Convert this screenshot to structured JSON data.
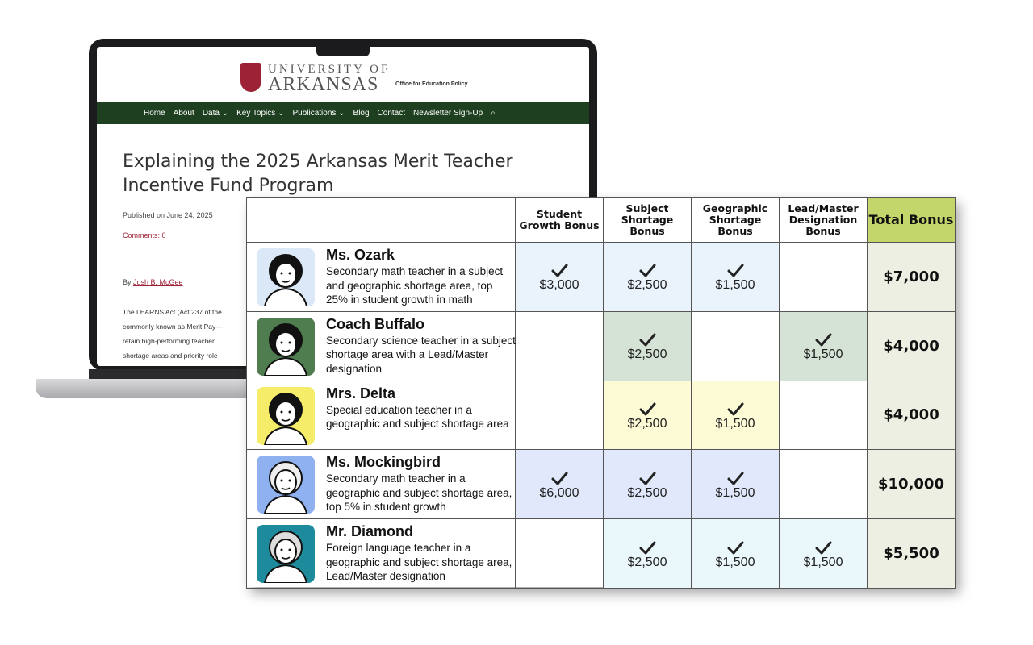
{
  "site": {
    "logo_top": "UNIVERSITY OF",
    "logo_main": "ARKANSAS",
    "office": "Office for Education Policy",
    "nav": [
      "Home",
      "About",
      "Data ⌄",
      "Key Topics ⌄",
      "Publications ⌄",
      "Blog",
      "Contact",
      "Newsletter Sign-Up",
      "⌕"
    ],
    "post": {
      "title": "Explaining the 2025 Arkansas Merit Teacher Incentive Fund Program",
      "published": "Published on June 24, 2025",
      "comments": "Comments: 0",
      "by_label": "By",
      "author": "Josh B. McGee",
      "body_lines": [
        "The LEARNS Act (Act 237 of the",
        "commonly known as Merit Pay—",
        "retain high-performing teacher",
        "shortage areas and priority role"
      ]
    }
  },
  "table": {
    "headers": [
      "Student Growth Bonus",
      "Subject Shortage Bonus",
      "Geographic Shortage Bonus",
      "Lead/Master Designation Bonus",
      "Total Bonus"
    ],
    "rows": [
      {
        "name": "Ms. Ozark",
        "description": "Secondary math teacher in a subject and geographic shortage area, top 25% in student growth in math",
        "bonuses": [
          "$3,000",
          "$2,500",
          "$1,500",
          null
        ],
        "total": "$7,000"
      },
      {
        "name": "Coach Buffalo",
        "description": "Secondary science teacher in a subject shortage area with a Lead/Master designation",
        "bonuses": [
          null,
          "$2,500",
          null,
          "$1,500"
        ],
        "total": "$4,000"
      },
      {
        "name": "Mrs. Delta",
        "description": "Special education teacher in a geographic and subject shortage area",
        "bonuses": [
          null,
          "$2,500",
          "$1,500",
          null
        ],
        "total": "$4,000"
      },
      {
        "name": "Ms. Mockingbird",
        "description": "Secondary math teacher in a geographic and subject shortage area, top 5% in student growth",
        "bonuses": [
          "$6,000",
          "$2,500",
          "$1,500",
          null
        ],
        "total": "$10,000"
      },
      {
        "name": "Mr. Diamond",
        "description": "Foreign language teacher in a geographic and subject shortage area, Lead/Master designation",
        "bonuses": [
          null,
          "$2,500",
          "$1,500",
          "$1,500"
        ],
        "total": "$5,500"
      }
    ]
  }
}
